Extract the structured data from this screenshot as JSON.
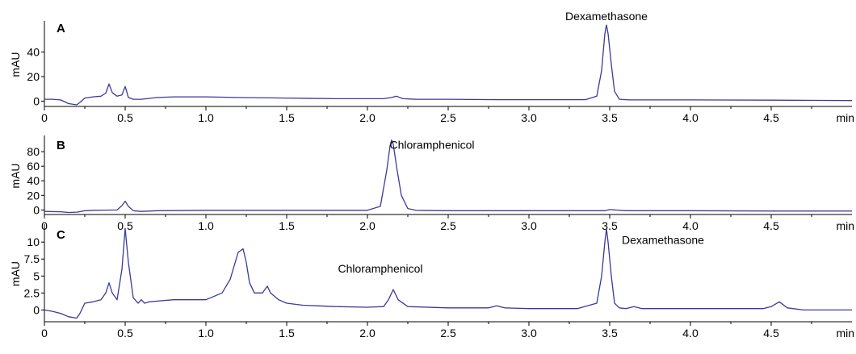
{
  "chart_data": [
    {
      "type": "line",
      "panel_label": "A",
      "ylabel": "mAU",
      "xlabel": "min",
      "xlim": [
        0,
        5.0
      ],
      "ylim": [
        -3,
        64
      ],
      "x_ticks": [
        0,
        0.5,
        1.0,
        1.5,
        2.0,
        2.5,
        3.0,
        3.5,
        4.0,
        4.5
      ],
      "x_tick_labels": [
        "0",
        "0.5",
        "1.0",
        "1.5",
        "2.0",
        "2.5",
        "3.0",
        "3.5",
        "4.0",
        "4.5"
      ],
      "y_ticks": [
        0,
        20,
        40
      ],
      "y_tick_labels": [
        "0",
        "20",
        "40"
      ],
      "line_color": "#3a3a9a",
      "annotations": [
        {
          "text": "Dexamethasone",
          "x": 3.48,
          "y": 66
        }
      ],
      "series": [
        {
          "x": [
            0,
            0.05,
            0.1,
            0.15,
            0.2,
            0.22,
            0.25,
            0.3,
            0.35,
            0.38,
            0.4,
            0.42,
            0.45,
            0.48,
            0.5,
            0.52,
            0.55,
            0.6,
            0.7,
            0.8,
            1.0,
            1.2,
            1.5,
            1.8,
            2.0,
            2.1,
            2.15,
            2.18,
            2.22,
            2.3,
            2.5,
            2.8,
            3.0,
            3.2,
            3.35,
            3.42,
            3.45,
            3.47,
            3.48,
            3.49,
            3.51,
            3.53,
            3.56,
            3.62,
            3.8,
            4.0,
            4.5,
            5.0
          ],
          "y": [
            1.5,
            1.5,
            1.0,
            -2.0,
            -3.0,
            -1.0,
            2.5,
            3.5,
            4.0,
            6.5,
            14.0,
            7.0,
            4.0,
            5.0,
            12.0,
            3.0,
            1.5,
            1.5,
            3.0,
            3.5,
            3.5,
            3.0,
            2.5,
            2.0,
            2.0,
            2.0,
            3.0,
            4.0,
            2.0,
            1.5,
            1.5,
            1.2,
            1.2,
            1.2,
            1.2,
            4.0,
            25.0,
            55.0,
            62.0,
            55.0,
            30.0,
            8.0,
            1.5,
            1.0,
            1.0,
            1.0,
            0.8,
            0.5
          ]
        }
      ]
    },
    {
      "type": "line",
      "panel_label": "B",
      "ylabel": "mAU",
      "xlabel": "min",
      "xlim": [
        0,
        5.0
      ],
      "ylim": [
        -4,
        100
      ],
      "x_ticks": [
        0,
        0.5,
        1.0,
        1.5,
        2.0,
        2.5,
        3.0,
        3.5,
        4.0,
        4.5
      ],
      "x_tick_labels": [
        "0",
        "0.5",
        "1.0",
        "1.5",
        "2.0",
        "2.5",
        "3.0",
        "3.5",
        "4.0",
        "4.5"
      ],
      "y_ticks": [
        0,
        20,
        40,
        60,
        80
      ],
      "y_tick_labels": [
        "0",
        "20",
        "40",
        "60",
        "80"
      ],
      "line_color": "#3a3a9a",
      "annotations": [
        {
          "text": "Chloramphenicol",
          "x": 2.4,
          "y": 84
        }
      ],
      "series": [
        {
          "x": [
            0,
            0.1,
            0.15,
            0.2,
            0.25,
            0.3,
            0.45,
            0.48,
            0.5,
            0.52,
            0.55,
            0.6,
            0.7,
            1.0,
            1.5,
            2.0,
            2.08,
            2.12,
            2.14,
            2.15,
            2.16,
            2.18,
            2.21,
            2.25,
            2.3,
            2.5,
            3.0,
            3.47,
            3.5,
            3.6,
            4.0,
            4.5,
            5.0
          ],
          "y": [
            -2.0,
            -2.5,
            -3.5,
            -3.0,
            -1.0,
            -0.5,
            0.0,
            6.0,
            12.0,
            5.0,
            -1.0,
            -2.0,
            -1.0,
            -0.5,
            -0.5,
            -0.5,
            5.0,
            55.0,
            88.0,
            96.0,
            90.0,
            60.0,
            20.0,
            2.0,
            -0.5,
            -1.0,
            -1.0,
            -1.0,
            0.5,
            -1.0,
            -1.0,
            -1.5,
            -1.5
          ]
        }
      ]
    },
    {
      "type": "line",
      "panel_label": "C",
      "ylabel": "mAU",
      "xlabel": "min",
      "xlim": [
        0,
        5.0
      ],
      "ylim": [
        -1.5,
        12.4
      ],
      "x_ticks": [
        0,
        0.5,
        1.0,
        1.5,
        2.0,
        2.5,
        3.0,
        3.5,
        4.0,
        4.5
      ],
      "x_tick_labels": [
        "0",
        "0.5",
        "1.0",
        "1.5",
        "2.0",
        "2.5",
        "3.0",
        "3.5",
        "4.0",
        "4.5"
      ],
      "y_ticks": [
        0,
        2.5,
        5,
        7.5,
        10
      ],
      "y_tick_labels": [
        "0",
        "2.5",
        "5",
        "7.5",
        "10"
      ],
      "line_color": "#3a3a9a",
      "annotations": [
        {
          "text": "Chloramphenicol",
          "x": 2.08,
          "y": 5.5
        },
        {
          "text": "Dexamethasone",
          "x": 3.83,
          "y": 9.7
        }
      ],
      "series": [
        {
          "x": [
            0,
            0.05,
            0.1,
            0.15,
            0.2,
            0.22,
            0.25,
            0.3,
            0.35,
            0.38,
            0.4,
            0.42,
            0.45,
            0.48,
            0.5,
            0.52,
            0.55,
            0.58,
            0.6,
            0.62,
            0.65,
            0.7,
            0.8,
            0.9,
            1.0,
            1.1,
            1.15,
            1.2,
            1.23,
            1.25,
            1.27,
            1.3,
            1.35,
            1.38,
            1.4,
            1.45,
            1.5,
            1.6,
            1.7,
            1.8,
            2.0,
            2.1,
            2.13,
            2.16,
            2.19,
            2.25,
            2.5,
            2.75,
            2.8,
            2.85,
            3.0,
            3.3,
            3.42,
            3.45,
            3.47,
            3.48,
            3.49,
            3.51,
            3.53,
            3.56,
            3.6,
            3.65,
            3.7,
            4.0,
            4.45,
            4.5,
            4.55,
            4.6,
            4.7,
            5.0
          ],
          "y": [
            0.0,
            -0.2,
            -0.5,
            -1.0,
            -1.2,
            -0.5,
            1.0,
            1.2,
            1.5,
            2.5,
            4.0,
            2.5,
            1.5,
            6.0,
            12.0,
            7.0,
            1.8,
            1.0,
            1.5,
            1.0,
            1.2,
            1.3,
            1.5,
            1.5,
            1.5,
            2.5,
            4.5,
            8.5,
            9.0,
            7.0,
            4.0,
            2.5,
            2.5,
            3.5,
            2.5,
            1.5,
            1.0,
            0.7,
            0.6,
            0.5,
            0.4,
            0.5,
            1.5,
            3.0,
            1.5,
            0.5,
            0.3,
            0.3,
            0.6,
            0.3,
            0.2,
            0.2,
            1.0,
            5.0,
            10.0,
            12.0,
            10.0,
            5.0,
            1.0,
            0.3,
            0.2,
            0.5,
            0.2,
            0.2,
            0.2,
            0.5,
            1.2,
            0.3,
            0.0,
            0.0
          ]
        }
      ]
    }
  ]
}
